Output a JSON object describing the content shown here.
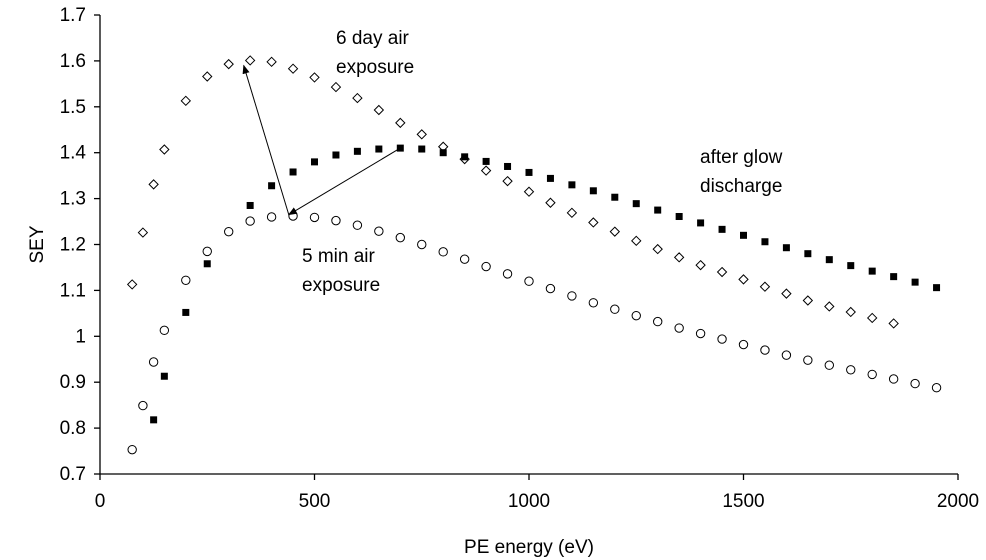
{
  "chart_data": {
    "type": "scatter",
    "title": "",
    "xlabel": "PE energy (eV)",
    "ylabel": "SEY",
    "xlim": [
      0,
      2000
    ],
    "ylim": [
      0.7,
      1.7
    ],
    "x_ticks": [
      0,
      500,
      1000,
      1500,
      2000
    ],
    "y_ticks": [
      0.7,
      0.8,
      0.9,
      1,
      1.1,
      1.2,
      1.3,
      1.4,
      1.5,
      1.6,
      1.7
    ],
    "x_tick_labels": [
      "0",
      "500",
      "1000",
      "1500",
      "2000"
    ],
    "y_tick_labels": [
      "0.7",
      "0.8",
      "0.9",
      "1",
      "1.1",
      "1.2",
      "1.3",
      "1.4",
      "1.5",
      "1.6",
      "1.7"
    ],
    "grid": false,
    "legend": "none",
    "series": [
      {
        "marker": "diamond-open",
        "color": "#000000",
        "x": [
          75,
          100,
          125,
          150,
          200,
          250,
          300,
          350,
          400,
          450,
          500,
          550,
          600,
          650,
          700,
          750,
          800,
          850,
          900,
          950,
          1000,
          1050,
          1100,
          1150,
          1200,
          1250,
          1300,
          1350,
          1400,
          1450,
          1500,
          1550,
          1600,
          1650,
          1700,
          1750,
          1800,
          1850
        ],
        "y": [
          1.113,
          1.226,
          1.331,
          1.407,
          1.513,
          1.566,
          1.593,
          1.601,
          1.598,
          1.583,
          1.564,
          1.543,
          1.519,
          1.493,
          1.465,
          1.44,
          1.413,
          1.386,
          1.361,
          1.338,
          1.315,
          1.291,
          1.269,
          1.248,
          1.228,
          1.208,
          1.19,
          1.172,
          1.155,
          1.14,
          1.124,
          1.108,
          1.093,
          1.078,
          1.065,
          1.053,
          1.04,
          1.028
        ]
      },
      {
        "marker": "square-filled",
        "color": "#000000",
        "x": [
          125,
          150,
          200,
          250,
          350,
          400,
          450,
          500,
          550,
          600,
          650,
          700,
          750,
          800,
          850,
          900,
          950,
          1000,
          1050,
          1100,
          1150,
          1200,
          1250,
          1300,
          1350,
          1400,
          1450,
          1500,
          1550,
          1600,
          1650,
          1700,
          1750,
          1800,
          1850,
          1900,
          1950
        ],
        "y": [
          0.818,
          0.913,
          1.052,
          1.158,
          1.285,
          1.328,
          1.358,
          1.38,
          1.395,
          1.403,
          1.408,
          1.41,
          1.408,
          1.4,
          1.391,
          1.381,
          1.37,
          1.357,
          1.344,
          1.33,
          1.317,
          1.303,
          1.289,
          1.275,
          1.261,
          1.247,
          1.233,
          1.22,
          1.206,
          1.193,
          1.18,
          1.167,
          1.154,
          1.142,
          1.13,
          1.118,
          1.106
        ]
      },
      {
        "marker": "circle-open",
        "color": "#000000",
        "x": [
          75,
          100,
          125,
          150,
          200,
          250,
          300,
          350,
          400,
          450,
          500,
          550,
          600,
          650,
          700,
          750,
          800,
          850,
          900,
          950,
          1000,
          1050,
          1100,
          1150,
          1200,
          1250,
          1300,
          1350,
          1400,
          1450,
          1500,
          1550,
          1600,
          1650,
          1700,
          1750,
          1800,
          1850,
          1900,
          1950
        ],
        "y": [
          0.753,
          0.849,
          0.944,
          1.013,
          1.122,
          1.185,
          1.228,
          1.251,
          1.26,
          1.262,
          1.259,
          1.252,
          1.242,
          1.229,
          1.215,
          1.2,
          1.184,
          1.168,
          1.152,
          1.136,
          1.12,
          1.104,
          1.088,
          1.073,
          1.059,
          1.045,
          1.032,
          1.018,
          1.006,
          0.994,
          0.982,
          0.97,
          0.959,
          0.948,
          0.937,
          0.927,
          0.917,
          0.907,
          0.897,
          0.888
        ]
      }
    ],
    "annotations": [
      {
        "line1": "6 day air",
        "line2": "exposure"
      },
      {
        "line1": "after glow",
        "line2": "discharge"
      },
      {
        "line1": "5 min air",
        "line2": "exposure"
      }
    ],
    "arrows": [
      {
        "from": [
          700,
          1.41
        ],
        "to": [
          440,
          1.265
        ]
      },
      {
        "from": [
          440,
          1.265
        ],
        "to": [
          335,
          1.59
        ]
      }
    ]
  }
}
